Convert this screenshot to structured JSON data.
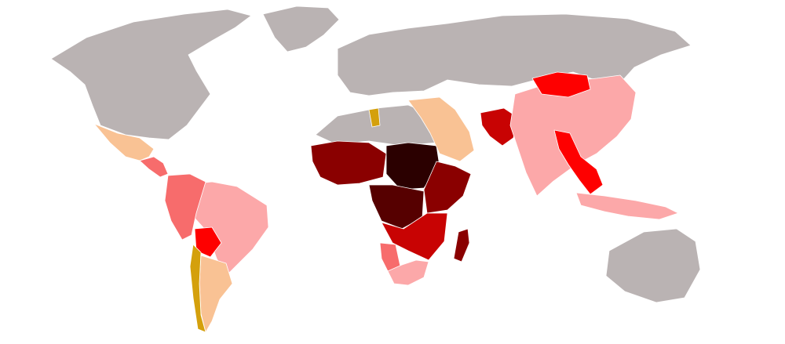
{
  "map": {
    "colors": {
      "no_data": "#bab3b3",
      "level_1": "#d4a00c",
      "level_2": "#f9c294",
      "level_3": "#fca8a9",
      "level_4": "#f76c6c",
      "level_5": "#fe0000",
      "level_6": "#c80303",
      "level_7": "#8a0000",
      "level_8": "#560000",
      "level_9": "#2b0000"
    },
    "regions": [
      {
        "name": "north-america",
        "level": "no_data"
      },
      {
        "name": "greenland",
        "level": "no_data"
      },
      {
        "name": "russia-europe",
        "level": "no_data"
      },
      {
        "name": "australia",
        "level": "no_data"
      },
      {
        "name": "mexico",
        "level": "level_2"
      },
      {
        "name": "central-america",
        "level": "level_4"
      },
      {
        "name": "south-america-brazil",
        "level": "level_3"
      },
      {
        "name": "south-america-west",
        "level": "level_4"
      },
      {
        "name": "bolivia",
        "level": "level_5"
      },
      {
        "name": "argentina",
        "level": "level_2"
      },
      {
        "name": "chile",
        "level": "level_1"
      },
      {
        "name": "north-africa",
        "level": "no_data"
      },
      {
        "name": "west-africa",
        "level": "level_7"
      },
      {
        "name": "central-africa",
        "level": "level_8"
      },
      {
        "name": "chad-sudan",
        "level": "level_9"
      },
      {
        "name": "east-africa",
        "level": "level_7"
      },
      {
        "name": "southern-africa",
        "level": "level_6"
      },
      {
        "name": "south-africa",
        "level": "level_3"
      },
      {
        "name": "namibia",
        "level": "level_4"
      },
      {
        "name": "madagascar",
        "level": "level_7"
      },
      {
        "name": "middle-east",
        "level": "level_2"
      },
      {
        "name": "afghanistan-pakistan",
        "level": "level_6"
      },
      {
        "name": "china-india",
        "level": "level_3"
      },
      {
        "name": "mongolia",
        "level": "level_5"
      },
      {
        "name": "southeast-asia",
        "level": "level_5"
      },
      {
        "name": "indonesia",
        "level": "level_3"
      },
      {
        "name": "tunisia",
        "level": "level_1"
      }
    ]
  }
}
